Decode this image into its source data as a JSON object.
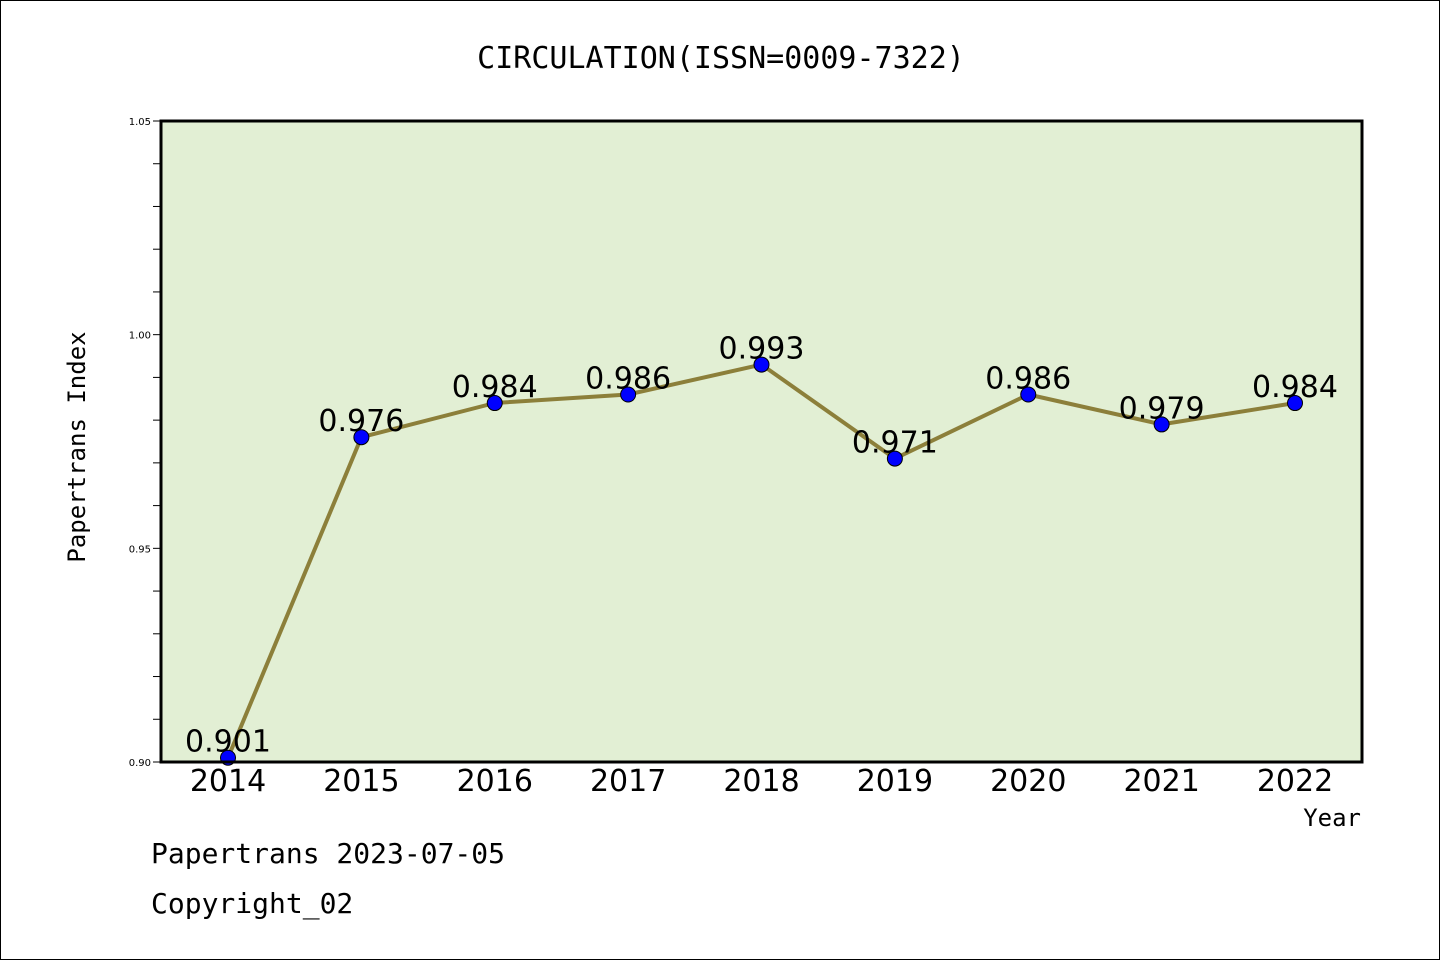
{
  "chart_data": {
    "type": "line",
    "title": "CIRCULATION(ISSN=0009-7322)",
    "xlabel": "Year",
    "ylabel": "Papertrans Index",
    "categories": [
      "2014",
      "2015",
      "2016",
      "2017",
      "2018",
      "2019",
      "2020",
      "2021",
      "2022"
    ],
    "values": [
      0.901,
      0.976,
      0.984,
      0.986,
      0.993,
      0.971,
      0.986,
      0.979,
      0.984
    ],
    "data_labels": [
      "0.901",
      "0.976",
      "0.984",
      "0.986",
      "0.993",
      "0.971",
      "0.986",
      "0.979",
      "0.984"
    ],
    "ylim": [
      0.9,
      1.05
    ],
    "yticks": [
      0.9,
      0.95,
      1.0,
      1.05
    ],
    "ytick_labels": [
      "0.90",
      "0.95",
      "1.00",
      "1.05"
    ],
    "grid": false,
    "colors": {
      "plot_background": "#e2efd4",
      "line": "#8c7f3a",
      "marker": "#0000ff"
    }
  },
  "footer": {
    "line1": "Papertrans 2023-07-05",
    "line2": "Copyright_02"
  }
}
